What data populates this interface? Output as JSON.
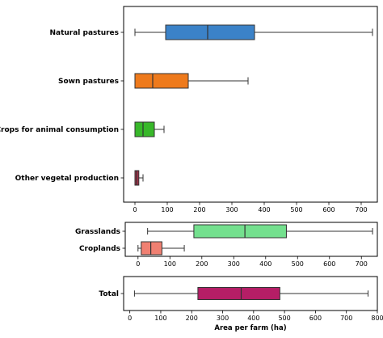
{
  "chart_data": [
    {
      "type": "box",
      "xlabel": "",
      "xlim": [
        -35,
        750
      ],
      "xticks": [
        0,
        100,
        200,
        300,
        400,
        500,
        600,
        700
      ],
      "series": [
        {
          "name": "Natural pastures",
          "whisker_low": 0,
          "q1": 95,
          "median": 225,
          "q3": 370,
          "whisker_high": 735,
          "color": "#3b82c8"
        },
        {
          "name": "Sown pastures",
          "whisker_low": 0,
          "q1": 0,
          "median": 55,
          "q3": 165,
          "whisker_high": 350,
          "color": "#ee7a1c"
        },
        {
          "name": "Crops for animal consumption",
          "whisker_low": 0,
          "q1": 0,
          "median": 25,
          "q3": 60,
          "whisker_high": 90,
          "color": "#38b82a"
        },
        {
          "name": "Other vegetal production",
          "whisker_low": 0,
          "q1": 0,
          "median": 5,
          "q3": 12,
          "whisker_high": 25,
          "color": "#a8324a"
        }
      ]
    },
    {
      "type": "box",
      "xlabel": "",
      "xlim": [
        -40,
        750
      ],
      "xticks": [
        0,
        100,
        200,
        300,
        400,
        500,
        600,
        700
      ],
      "series": [
        {
          "name": "Grasslands",
          "whisker_low": 30,
          "q1": 175,
          "median": 335,
          "q3": 465,
          "whisker_high": 735,
          "color": "#74e08e"
        },
        {
          "name": "Croplands",
          "whisker_low": 0,
          "q1": 10,
          "median": 40,
          "q3": 75,
          "whisker_high": 145,
          "color": "#f08072"
        }
      ]
    },
    {
      "type": "box",
      "xlabel": "Area per farm (ha)",
      "xlim": [
        -20,
        800
      ],
      "xticks": [
        0,
        100,
        200,
        300,
        400,
        500,
        600,
        700,
        800
      ],
      "series": [
        {
          "name": "Total",
          "whisker_low": 15,
          "q1": 220,
          "median": 360,
          "q3": 485,
          "whisker_high": 770,
          "color": "#b51e66"
        }
      ]
    }
  ]
}
